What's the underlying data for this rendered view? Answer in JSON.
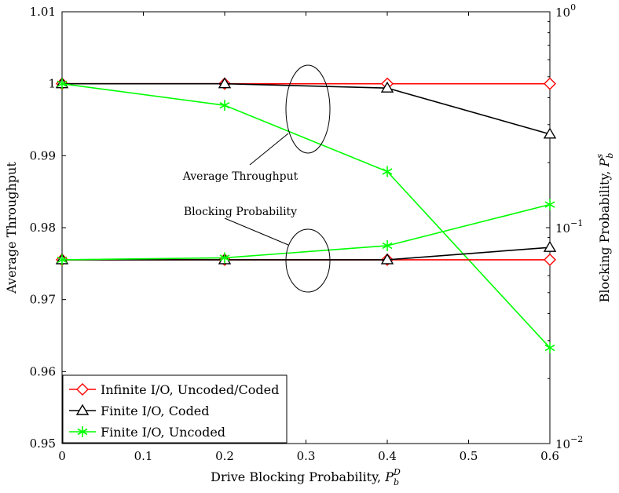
{
  "chart_data": {
    "type": "line",
    "x": [
      0,
      0.2,
      0.4,
      0.6
    ],
    "xlabel": "Drive Blocking Probability, ",
    "xlabel_math": {
      "base": "P",
      "sub": "b",
      "sup": "D"
    },
    "xlim": [
      0,
      0.6
    ],
    "xticks": [
      "0",
      "0.1",
      "0.2",
      "0.3",
      "0.4",
      "0.5",
      "0.6"
    ],
    "ylabel_left": "Average Throughput",
    "ylim_left": [
      0.95,
      1.01
    ],
    "yticks_left": [
      "0.95",
      "0.96",
      "0.97",
      "0.98",
      "0.99",
      "1",
      "1.01"
    ],
    "ylabel_right": "Blocking Probability, ",
    "ylabel_right_math": {
      "base": "P",
      "sub": "b",
      "sup": "s"
    },
    "ylim_right_log": [
      0.01,
      1
    ],
    "yticks_right": [
      {
        "base": "10",
        "exp": "0"
      },
      {
        "base": "10",
        "exp": "−1"
      },
      {
        "base": "10",
        "exp": "−2"
      }
    ],
    "grid": false,
    "legend_position": "bottom-left",
    "series": [
      {
        "name": "Infinite I/O, Uncoded/Coded",
        "color": "#ff0000",
        "marker": "diamond",
        "axis": "left",
        "values": [
          1.0,
          1.0,
          1.0,
          1.0
        ]
      },
      {
        "name": "Finite I/O, Coded",
        "color": "#000000",
        "marker": "triangle",
        "axis": "left",
        "values": [
          1.0,
          1.0,
          0.9994,
          0.993
        ]
      },
      {
        "name": "Finite I/O, Uncoded",
        "color": "#00ff00",
        "marker": "star",
        "axis": "left",
        "values": [
          1.0,
          0.997,
          0.9878,
          0.9633
        ]
      },
      {
        "name": "Infinite I/O, Uncoded/Coded",
        "color": "#ff0000",
        "marker": "diamond",
        "axis": "right",
        "show_in_legend": false,
        "values": [
          0.071,
          0.071,
          0.071,
          0.071
        ]
      },
      {
        "name": "Finite I/O, Coded",
        "color": "#000000",
        "marker": "triangle",
        "axis": "right",
        "show_in_legend": false,
        "values": [
          0.071,
          0.071,
          0.071,
          0.081
        ]
      },
      {
        "name": "Finite I/O, Uncoded",
        "color": "#00ff00",
        "marker": "star",
        "axis": "right",
        "show_in_legend": false,
        "values": [
          0.071,
          0.0725,
          0.0825,
          0.128
        ]
      }
    ],
    "annotations": [
      {
        "text": "Average Throughput",
        "target": "throughput-curves"
      },
      {
        "text": "Blocking Probability",
        "target": "blocking-curves"
      }
    ]
  }
}
